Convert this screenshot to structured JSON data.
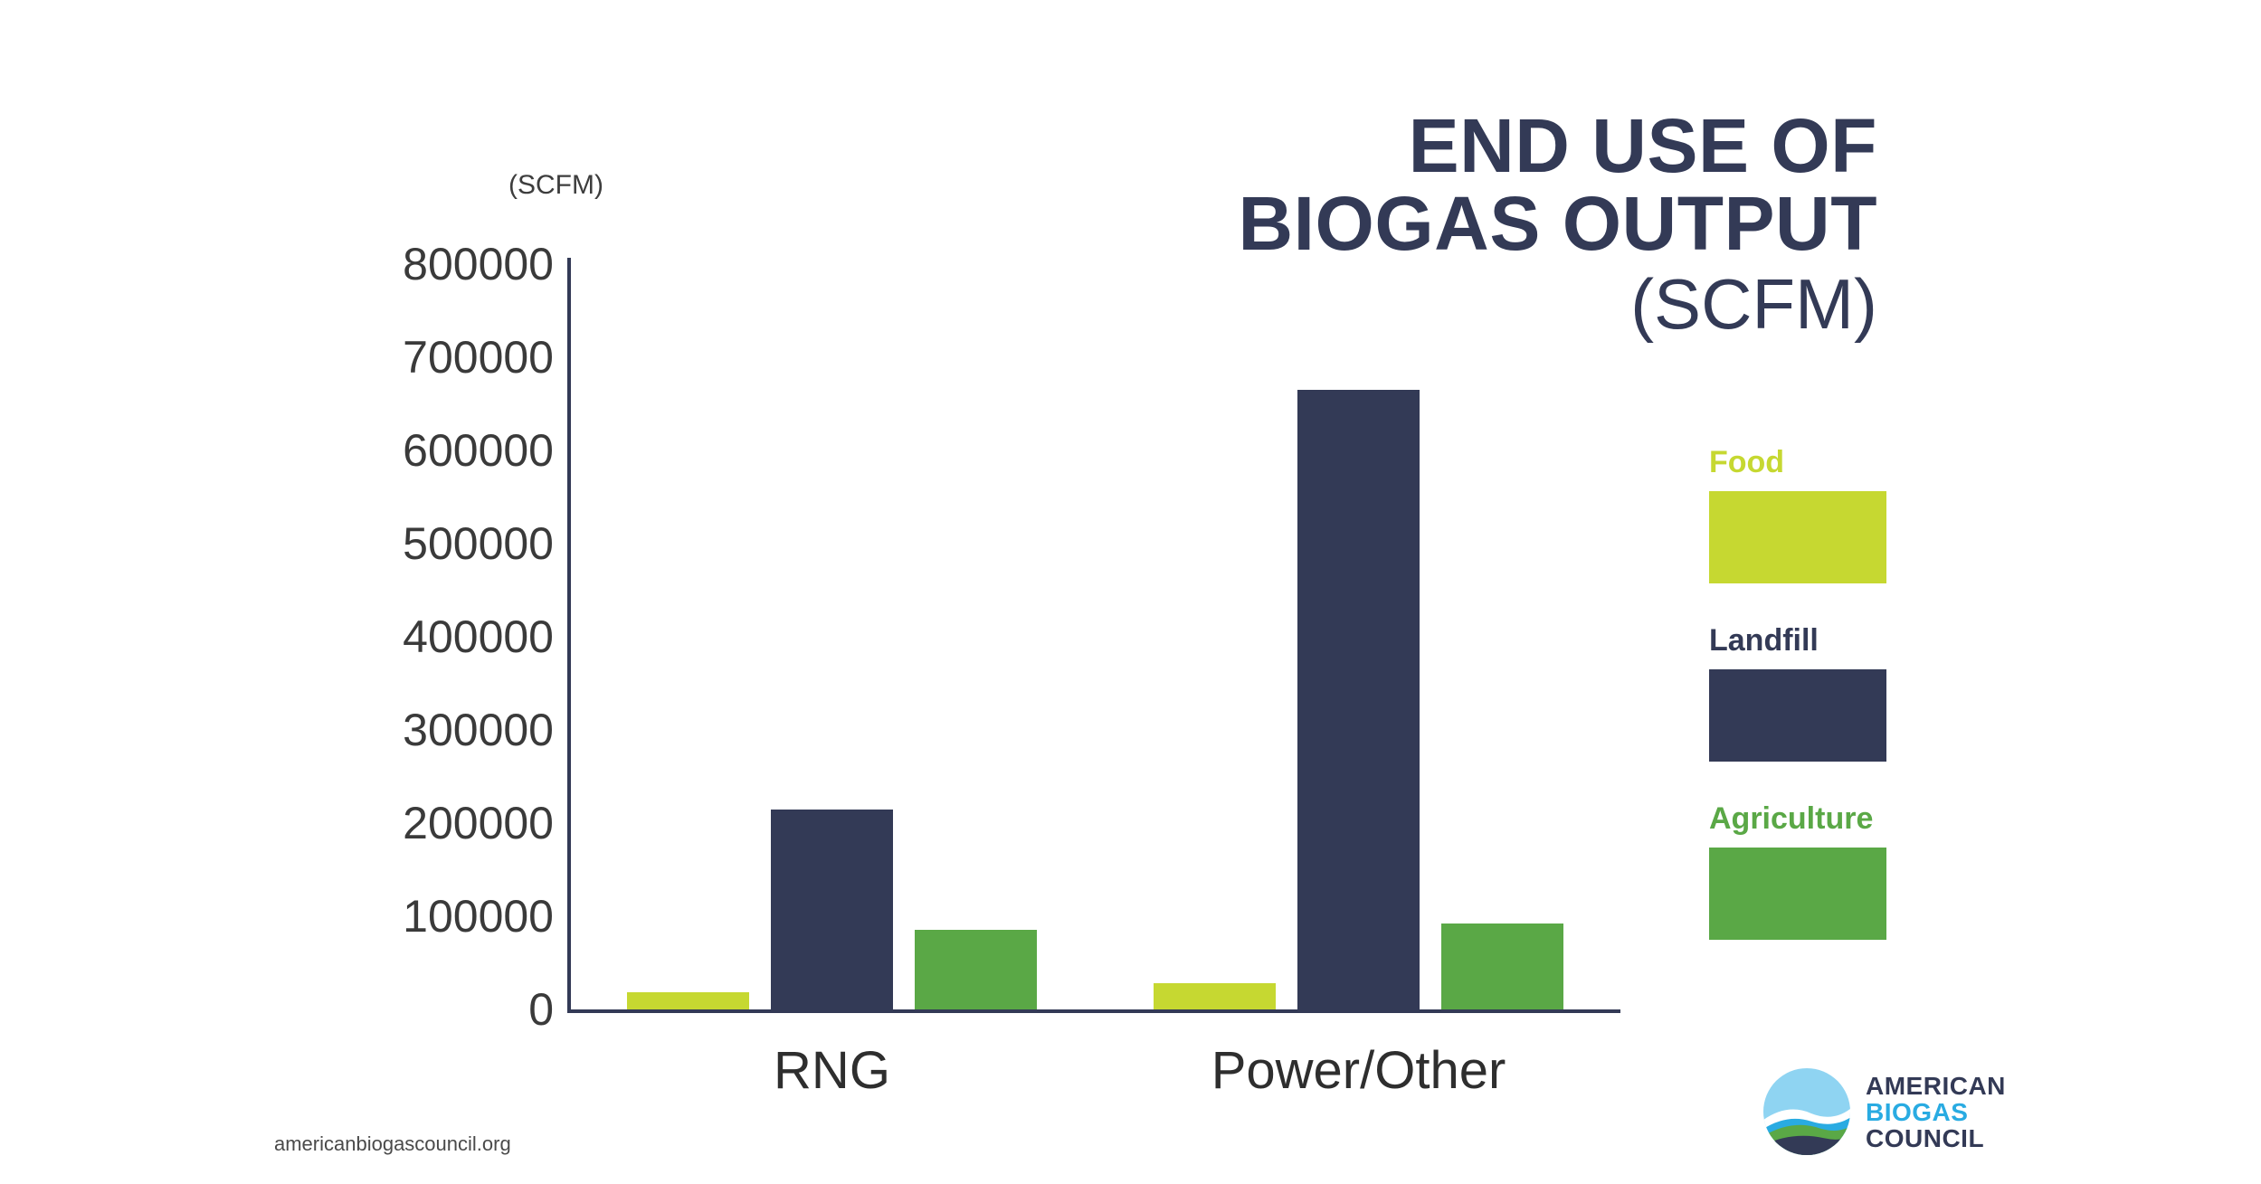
{
  "page": {
    "footer_url": "americanbiogascouncil.org"
  },
  "title": {
    "line1": "END USE OF",
    "line2": "BIOGAS OUTPUT",
    "line3": "(SCFM)"
  },
  "chart_data": {
    "type": "bar",
    "title": "END USE OF BIOGAS OUTPUT (SCFM)",
    "axis_unit_label": "(SCFM)",
    "categories": [
      "RNG",
      "Power/Other"
    ],
    "series": [
      {
        "name": "Food",
        "color": "#c6d831",
        "values": [
          18000,
          28000
        ]
      },
      {
        "name": "Landfill",
        "color": "#333a56",
        "values": [
          215000,
          665000
        ]
      },
      {
        "name": "Agriculture",
        "color": "#5aa846",
        "values": [
          85000,
          92000
        ]
      }
    ],
    "ylim": [
      0,
      800000
    ],
    "yticks": [
      0,
      100000,
      200000,
      300000,
      400000,
      500000,
      600000,
      700000,
      800000
    ],
    "grid": false,
    "legend_position": "right",
    "xlabel": "",
    "ylabel": "(SCFM)"
  },
  "legend": {
    "items": [
      {
        "label": "Food",
        "color": "#c6d831"
      },
      {
        "label": "Landfill",
        "color": "#333a56"
      },
      {
        "label": "Agriculture",
        "color": "#5aa846"
      }
    ]
  },
  "logo": {
    "line1": "AMERICAN",
    "line2": "BIOGAS",
    "line3": "COUNCIL",
    "navy": "#333a56",
    "cyan": "#29abe2"
  }
}
